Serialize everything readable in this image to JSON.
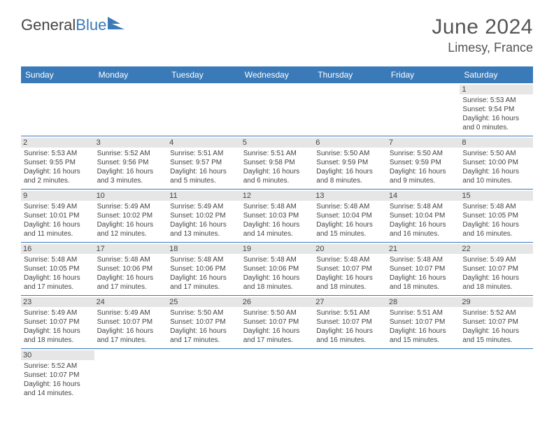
{
  "logo": {
    "general": "General",
    "blue": "Blue"
  },
  "title": {
    "month": "June 2024",
    "location": "Limesy, France"
  },
  "colors": {
    "header_bg": "#3a7ab8",
    "header_text": "#ffffff",
    "daynum_bg": "#e6e6e6",
    "row_border": "#3a7ab8"
  },
  "dayHeaders": [
    "Sunday",
    "Monday",
    "Tuesday",
    "Wednesday",
    "Thursday",
    "Friday",
    "Saturday"
  ],
  "weeks": [
    [
      null,
      null,
      null,
      null,
      null,
      null,
      {
        "n": "1",
        "sr": "Sunrise: 5:53 AM",
        "ss": "Sunset: 9:54 PM",
        "d1": "Daylight: 16 hours",
        "d2": "and 0 minutes."
      }
    ],
    [
      {
        "n": "2",
        "sr": "Sunrise: 5:53 AM",
        "ss": "Sunset: 9:55 PM",
        "d1": "Daylight: 16 hours",
        "d2": "and 2 minutes."
      },
      {
        "n": "3",
        "sr": "Sunrise: 5:52 AM",
        "ss": "Sunset: 9:56 PM",
        "d1": "Daylight: 16 hours",
        "d2": "and 3 minutes."
      },
      {
        "n": "4",
        "sr": "Sunrise: 5:51 AM",
        "ss": "Sunset: 9:57 PM",
        "d1": "Daylight: 16 hours",
        "d2": "and 5 minutes."
      },
      {
        "n": "5",
        "sr": "Sunrise: 5:51 AM",
        "ss": "Sunset: 9:58 PM",
        "d1": "Daylight: 16 hours",
        "d2": "and 6 minutes."
      },
      {
        "n": "6",
        "sr": "Sunrise: 5:50 AM",
        "ss": "Sunset: 9:59 PM",
        "d1": "Daylight: 16 hours",
        "d2": "and 8 minutes."
      },
      {
        "n": "7",
        "sr": "Sunrise: 5:50 AM",
        "ss": "Sunset: 9:59 PM",
        "d1": "Daylight: 16 hours",
        "d2": "and 9 minutes."
      },
      {
        "n": "8",
        "sr": "Sunrise: 5:50 AM",
        "ss": "Sunset: 10:00 PM",
        "d1": "Daylight: 16 hours",
        "d2": "and 10 minutes."
      }
    ],
    [
      {
        "n": "9",
        "sr": "Sunrise: 5:49 AM",
        "ss": "Sunset: 10:01 PM",
        "d1": "Daylight: 16 hours",
        "d2": "and 11 minutes."
      },
      {
        "n": "10",
        "sr": "Sunrise: 5:49 AM",
        "ss": "Sunset: 10:02 PM",
        "d1": "Daylight: 16 hours",
        "d2": "and 12 minutes."
      },
      {
        "n": "11",
        "sr": "Sunrise: 5:49 AM",
        "ss": "Sunset: 10:02 PM",
        "d1": "Daylight: 16 hours",
        "d2": "and 13 minutes."
      },
      {
        "n": "12",
        "sr": "Sunrise: 5:48 AM",
        "ss": "Sunset: 10:03 PM",
        "d1": "Daylight: 16 hours",
        "d2": "and 14 minutes."
      },
      {
        "n": "13",
        "sr": "Sunrise: 5:48 AM",
        "ss": "Sunset: 10:04 PM",
        "d1": "Daylight: 16 hours",
        "d2": "and 15 minutes."
      },
      {
        "n": "14",
        "sr": "Sunrise: 5:48 AM",
        "ss": "Sunset: 10:04 PM",
        "d1": "Daylight: 16 hours",
        "d2": "and 16 minutes."
      },
      {
        "n": "15",
        "sr": "Sunrise: 5:48 AM",
        "ss": "Sunset: 10:05 PM",
        "d1": "Daylight: 16 hours",
        "d2": "and 16 minutes."
      }
    ],
    [
      {
        "n": "16",
        "sr": "Sunrise: 5:48 AM",
        "ss": "Sunset: 10:05 PM",
        "d1": "Daylight: 16 hours",
        "d2": "and 17 minutes."
      },
      {
        "n": "17",
        "sr": "Sunrise: 5:48 AM",
        "ss": "Sunset: 10:06 PM",
        "d1": "Daylight: 16 hours",
        "d2": "and 17 minutes."
      },
      {
        "n": "18",
        "sr": "Sunrise: 5:48 AM",
        "ss": "Sunset: 10:06 PM",
        "d1": "Daylight: 16 hours",
        "d2": "and 17 minutes."
      },
      {
        "n": "19",
        "sr": "Sunrise: 5:48 AM",
        "ss": "Sunset: 10:06 PM",
        "d1": "Daylight: 16 hours",
        "d2": "and 18 minutes."
      },
      {
        "n": "20",
        "sr": "Sunrise: 5:48 AM",
        "ss": "Sunset: 10:07 PM",
        "d1": "Daylight: 16 hours",
        "d2": "and 18 minutes."
      },
      {
        "n": "21",
        "sr": "Sunrise: 5:48 AM",
        "ss": "Sunset: 10:07 PM",
        "d1": "Daylight: 16 hours",
        "d2": "and 18 minutes."
      },
      {
        "n": "22",
        "sr": "Sunrise: 5:49 AM",
        "ss": "Sunset: 10:07 PM",
        "d1": "Daylight: 16 hours",
        "d2": "and 18 minutes."
      }
    ],
    [
      {
        "n": "23",
        "sr": "Sunrise: 5:49 AM",
        "ss": "Sunset: 10:07 PM",
        "d1": "Daylight: 16 hours",
        "d2": "and 18 minutes."
      },
      {
        "n": "24",
        "sr": "Sunrise: 5:49 AM",
        "ss": "Sunset: 10:07 PM",
        "d1": "Daylight: 16 hours",
        "d2": "and 17 minutes."
      },
      {
        "n": "25",
        "sr": "Sunrise: 5:50 AM",
        "ss": "Sunset: 10:07 PM",
        "d1": "Daylight: 16 hours",
        "d2": "and 17 minutes."
      },
      {
        "n": "26",
        "sr": "Sunrise: 5:50 AM",
        "ss": "Sunset: 10:07 PM",
        "d1": "Daylight: 16 hours",
        "d2": "and 17 minutes."
      },
      {
        "n": "27",
        "sr": "Sunrise: 5:51 AM",
        "ss": "Sunset: 10:07 PM",
        "d1": "Daylight: 16 hours",
        "d2": "and 16 minutes."
      },
      {
        "n": "28",
        "sr": "Sunrise: 5:51 AM",
        "ss": "Sunset: 10:07 PM",
        "d1": "Daylight: 16 hours",
        "d2": "and 15 minutes."
      },
      {
        "n": "29",
        "sr": "Sunrise: 5:52 AM",
        "ss": "Sunset: 10:07 PM",
        "d1": "Daylight: 16 hours",
        "d2": "and 15 minutes."
      }
    ],
    [
      {
        "n": "30",
        "sr": "Sunrise: 5:52 AM",
        "ss": "Sunset: 10:07 PM",
        "d1": "Daylight: 16 hours",
        "d2": "and 14 minutes."
      },
      null,
      null,
      null,
      null,
      null,
      null
    ]
  ]
}
